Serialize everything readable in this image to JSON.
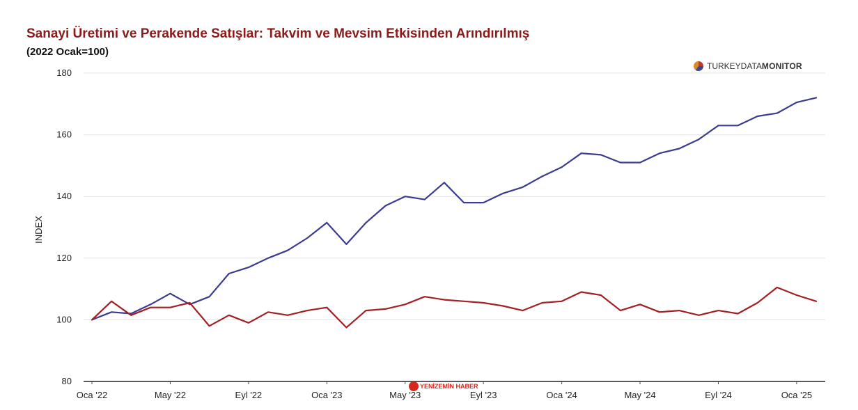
{
  "header": {
    "title": "Sanayi Üretimi ve Perakende Satışlar: Takvim ve Mevsim Etkisinden Arındırılmış",
    "subtitle": "(2022 Ocak=100)"
  },
  "brand": {
    "name_light": "TURKEYDATA",
    "name_bold": "MONITOR",
    "icon": "globe-icon"
  },
  "watermark": {
    "text": "YENİZEMİN HABER",
    "icon": "logo-circle-icon"
  },
  "chart_data": {
    "type": "line",
    "title": "Sanayi Üretimi ve Perakende Satışlar: Takvim ve Mevsim Etkisinden Arındırılmış",
    "subtitle": "(2022 Ocak=100)",
    "ylabel": "INDEX",
    "xlabel": "",
    "ylim": [
      80,
      180
    ],
    "yticks": [
      80,
      100,
      120,
      140,
      160,
      180
    ],
    "x": [
      "2022-01",
      "2022-02",
      "2022-03",
      "2022-04",
      "2022-05",
      "2022-06",
      "2022-07",
      "2022-08",
      "2022-09",
      "2022-10",
      "2022-11",
      "2022-12",
      "2023-01",
      "2023-02",
      "2023-03",
      "2023-04",
      "2023-05",
      "2023-06",
      "2023-07",
      "2023-08",
      "2023-09",
      "2023-10",
      "2023-11",
      "2023-12",
      "2024-01",
      "2024-02",
      "2024-03",
      "2024-04",
      "2024-05",
      "2024-06",
      "2024-07",
      "2024-08",
      "2024-09",
      "2024-10",
      "2024-11",
      "2024-12",
      "2025-01",
      "2025-02"
    ],
    "xticks": [
      {
        "index": 0,
        "label": "Oca '22"
      },
      {
        "index": 4,
        "label": "May '22"
      },
      {
        "index": 8,
        "label": "Eyl '22"
      },
      {
        "index": 12,
        "label": "Oca '23"
      },
      {
        "index": 16,
        "label": "May '23"
      },
      {
        "index": 20,
        "label": "Eyl '23"
      },
      {
        "index": 24,
        "label": "Oca '24"
      },
      {
        "index": 28,
        "label": "May '24"
      },
      {
        "index": 32,
        "label": "Eyl '24"
      },
      {
        "index": 36,
        "label": "Oca '25"
      }
    ],
    "series": [
      {
        "key": "blue",
        "color": "#3b3b8f",
        "values": [
          100,
          102.5,
          102,
          105,
          108.5,
          105,
          107.5,
          115,
          117,
          120,
          122.5,
          126.5,
          131.5,
          124.5,
          131.5,
          137,
          140,
          139,
          144.5,
          138,
          138,
          141,
          143,
          146.5,
          149.5,
          154,
          153.5,
          151,
          151,
          154,
          155.5,
          158.5,
          163,
          163,
          166,
          167,
          170.5,
          172
        ]
      },
      {
        "key": "red",
        "color": "#a31f24",
        "values": [
          100,
          106,
          101.5,
          104,
          104,
          105.5,
          98,
          101.5,
          99,
          102.5,
          101.5,
          103,
          104,
          97.5,
          103,
          103.5,
          105,
          107.5,
          106.5,
          106,
          105.5,
          104.5,
          103,
          105.5,
          106,
          109,
          108,
          103,
          105,
          102.5,
          103,
          101.5,
          103,
          102,
          105.5,
          110.5,
          108,
          106
        ]
      }
    ],
    "grid": true,
    "legend": "none"
  }
}
